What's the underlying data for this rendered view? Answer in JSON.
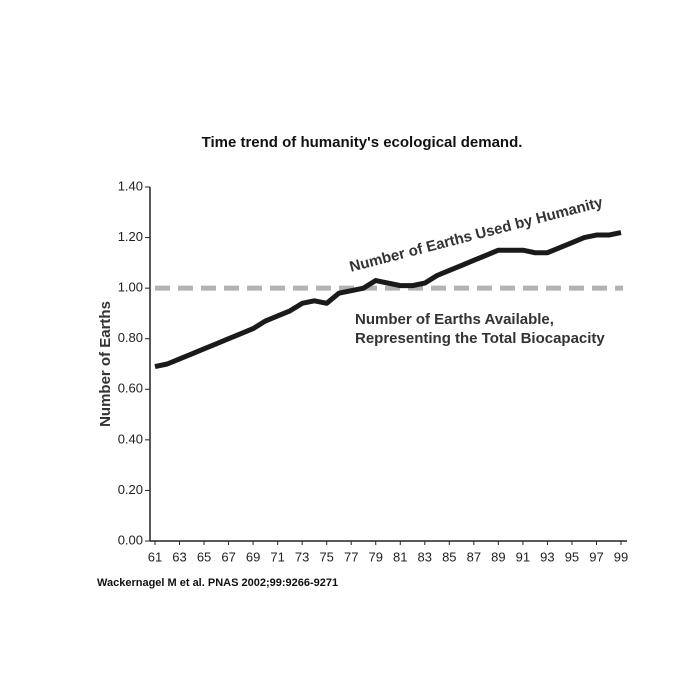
{
  "chart_data": {
    "type": "line",
    "title": "Time trend of humanity's ecological demand.",
    "y_label": "Number of Earths",
    "source": "Wackernagel M et al. PNAS 2002;99:9266-9271",
    "x": [
      61,
      62,
      63,
      64,
      65,
      66,
      67,
      68,
      69,
      70,
      71,
      72,
      73,
      74,
      75,
      76,
      77,
      78,
      79,
      80,
      81,
      82,
      83,
      84,
      85,
      86,
      87,
      88,
      89,
      90,
      91,
      92,
      93,
      94,
      95,
      96,
      97,
      98,
      99
    ],
    "series": [
      {
        "name": "Number of Earths Used by Humanity",
        "color": "#1a1a1a",
        "values": [
          0.69,
          0.7,
          0.72,
          0.74,
          0.76,
          0.78,
          0.8,
          0.82,
          0.84,
          0.87,
          0.89,
          0.91,
          0.94,
          0.95,
          0.94,
          0.98,
          0.99,
          1.0,
          1.03,
          1.02,
          1.01,
          1.01,
          1.02,
          1.05,
          1.07,
          1.09,
          1.11,
          1.13,
          1.15,
          1.15,
          1.15,
          1.14,
          1.14,
          1.16,
          1.18,
          1.2,
          1.21,
          1.21,
          1.22
        ]
      }
    ],
    "reference_line": {
      "value": 1,
      "color": "#b3b3b3",
      "label": [
        "Number of Earths Available,",
        "Representing the Total Biocapacity"
      ]
    },
    "xlim": [
      61,
      99
    ],
    "xticks": [
      61,
      63,
      65,
      67,
      69,
      71,
      73,
      75,
      77,
      79,
      81,
      83,
      85,
      87,
      89,
      91,
      93,
      95,
      97,
      99
    ],
    "ylim": [
      0,
      1.4
    ],
    "yticks": [
      {
        "value": 0,
        "label": "0.00"
      },
      {
        "value": 0.2,
        "label": "0.20"
      },
      {
        "value": 0.4,
        "label": "0.40"
      },
      {
        "value": 0.6,
        "label": "0.60"
      },
      {
        "value": 0.8,
        "label": "0.80"
      },
      {
        "value": 1,
        "label": "1.00"
      },
      {
        "value": 1.2,
        "label": "1.20"
      },
      {
        "value": 1.4,
        "label": "1.40"
      }
    ]
  }
}
